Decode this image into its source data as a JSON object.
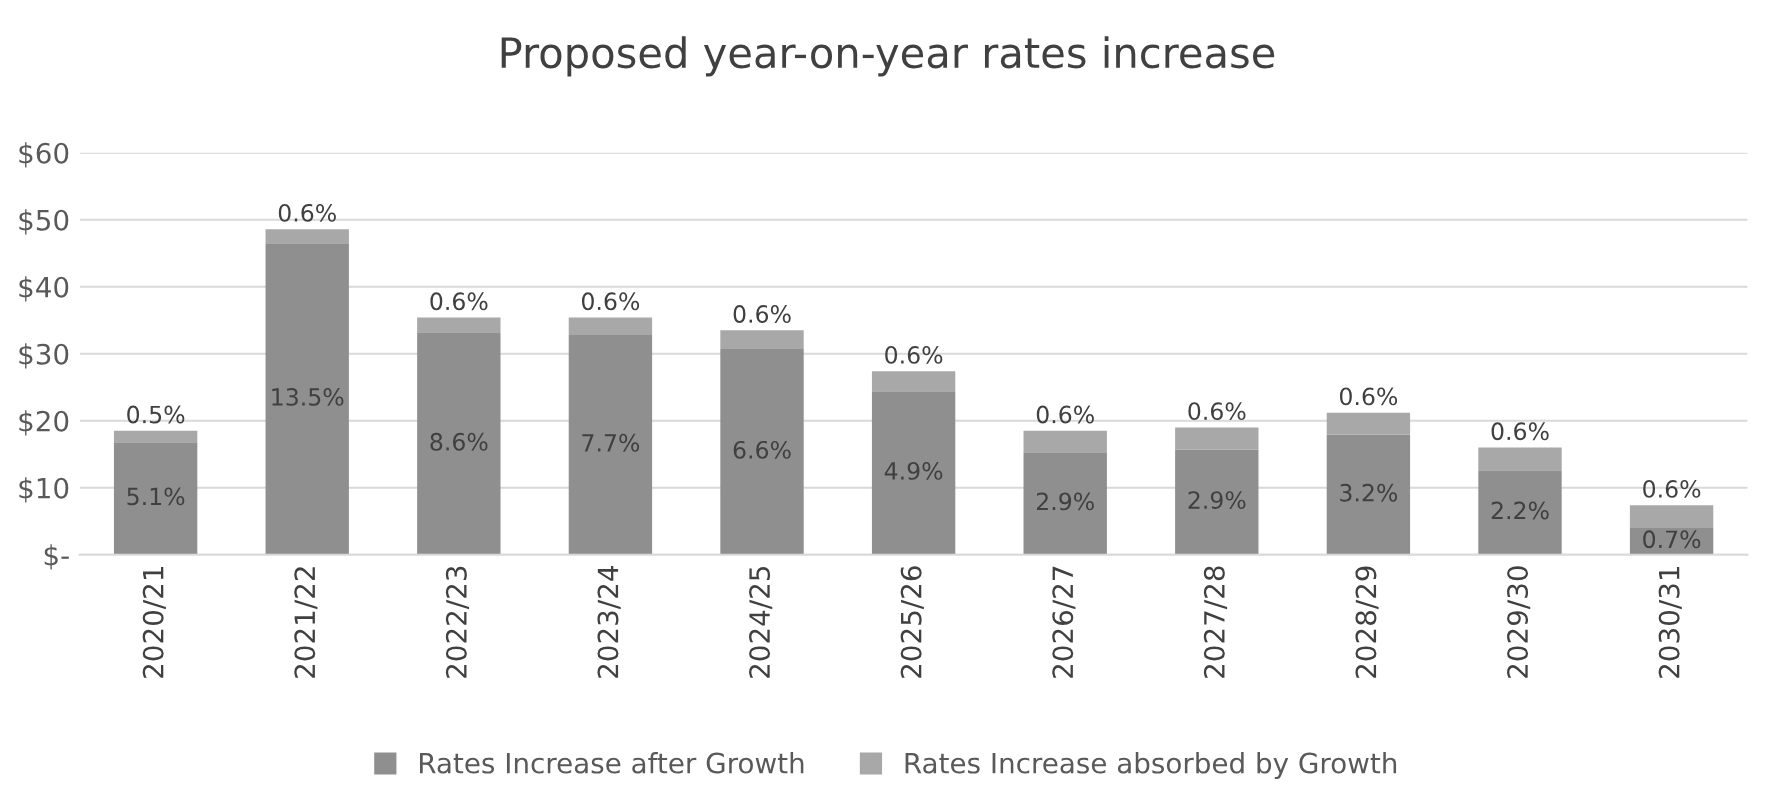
{
  "chart_data": {
    "type": "bar",
    "title": "Proposed year-on-year rates increase",
    "stacked": true,
    "categories": [
      "2020/21",
      "2021/22",
      "2022/23",
      "2023/24",
      "2024/25",
      "2025/26",
      "2026/27",
      "2027/28",
      "2028/29",
      "2029/30",
      "2030/31"
    ],
    "series": [
      {
        "name": "Rates Increase after Growth",
        "color": "#8f8f8f",
        "values": [
          16.8,
          46.5,
          33.1,
          32.8,
          30.7,
          24.4,
          15.3,
          15.7,
          17.9,
          12.6,
          4.0
        ]
      },
      {
        "name": "Rates Increase absorbed by Growth",
        "color": "#a8a8a8",
        "values": [
          1.7,
          2.1,
          2.3,
          2.6,
          2.8,
          3.0,
          3.2,
          3.3,
          3.3,
          3.4,
          3.4
        ]
      }
    ],
    "annotations": [
      "5.1%",
      "13.5%",
      "8.6%",
      "7.7%",
      "6.6%",
      "4.9%",
      "2.9%",
      "2.9%",
      "3.2%",
      "2.2%",
      "0.7%",
      "0.5%",
      "0.6%",
      "0.6%",
      "0.6%",
      "0.6%",
      "0.6%",
      "0.6%",
      "0.6%",
      "0.6%",
      "0.6%",
      "0.6%"
    ],
    "ylim": [
      0,
      60
    ],
    "yticks": [
      {
        "value": 0,
        "label": "$-"
      },
      {
        "value": 10,
        "label": "$10"
      },
      {
        "value": 20,
        "label": "$20"
      },
      {
        "value": 30,
        "label": "$30"
      },
      {
        "value": 40,
        "label": "$40"
      },
      {
        "value": 50,
        "label": "$50"
      },
      {
        "value": 60,
        "label": "$60"
      }
    ],
    "grid": "y",
    "legend": "bottom"
  }
}
